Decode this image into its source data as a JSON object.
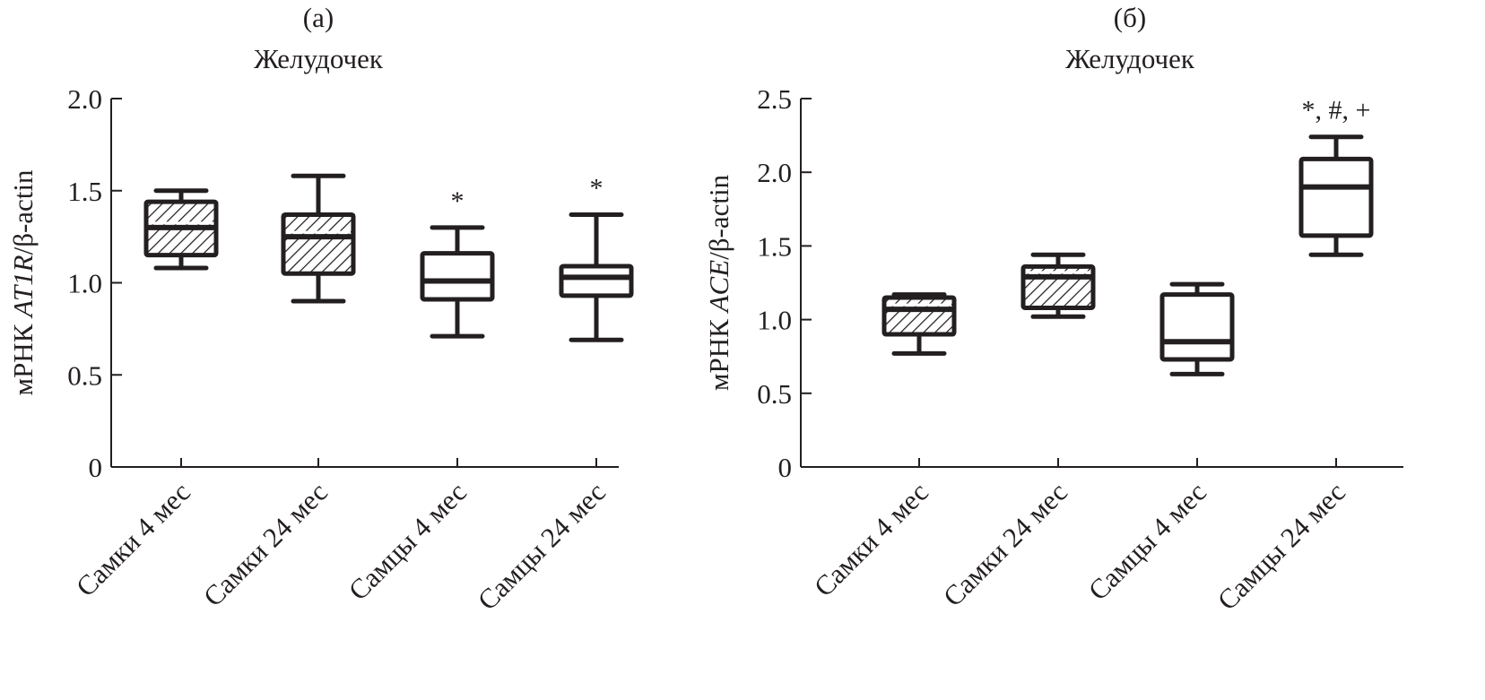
{
  "chart_data": [
    {
      "type": "box",
      "panel_label": "(а)",
      "title": "Желудочек",
      "ylabel": {
        "prefix": "мРНК ",
        "gene": "AT1R",
        "suffix": "/β-actin"
      },
      "ylim": [
        0,
        2.0
      ],
      "yticks": [
        0,
        0.5,
        1.0,
        1.5,
        2.0
      ],
      "ytick_labels": [
        "0",
        "0.5",
        "1.0",
        "1.5",
        "2.0"
      ],
      "categories": [
        "Самки 4 мес",
        "Самки 24 мес",
        "Самцы 4 мес",
        "Самцы 24 мес"
      ],
      "boxes": [
        {
          "min": 1.08,
          "q1": 1.15,
          "median": 1.3,
          "q3": 1.44,
          "max": 1.5,
          "hatched": true,
          "annotation": ""
        },
        {
          "min": 0.9,
          "q1": 1.05,
          "median": 1.25,
          "q3": 1.37,
          "max": 1.58,
          "hatched": true,
          "annotation": ""
        },
        {
          "min": 0.71,
          "q1": 0.91,
          "median": 1.01,
          "q3": 1.16,
          "max": 1.3,
          "hatched": false,
          "annotation": "*"
        },
        {
          "min": 0.69,
          "q1": 0.93,
          "median": 1.03,
          "q3": 1.09,
          "max": 1.37,
          "hatched": false,
          "annotation": "*"
        }
      ]
    },
    {
      "type": "box",
      "panel_label": "(б)",
      "title": "Желудочек",
      "ylabel": {
        "prefix": "мРНК ",
        "gene": "ACE",
        "suffix": "/β-actin"
      },
      "ylim": [
        0,
        2.5
      ],
      "yticks": [
        0,
        0.5,
        1.0,
        1.5,
        2.0,
        2.5
      ],
      "ytick_labels": [
        "0",
        "0.5",
        "1.0",
        "1.5",
        "2.0",
        "2.5"
      ],
      "categories": [
        "Самки 4 мес",
        "Самки 24 мес",
        "Самцы 4 мес",
        "Самцы 24 мес"
      ],
      "boxes": [
        {
          "min": 0.77,
          "q1": 0.9,
          "median": 1.07,
          "q3": 1.15,
          "max": 1.17,
          "hatched": true,
          "annotation": ""
        },
        {
          "min": 1.02,
          "q1": 1.08,
          "median": 1.29,
          "q3": 1.36,
          "max": 1.44,
          "hatched": true,
          "annotation": ""
        },
        {
          "min": 0.63,
          "q1": 0.73,
          "median": 0.85,
          "q3": 1.17,
          "max": 1.24,
          "hatched": false,
          "annotation": ""
        },
        {
          "min": 1.44,
          "q1": 1.57,
          "median": 1.9,
          "q3": 2.09,
          "max": 2.24,
          "hatched": false,
          "annotation": "*, #, +"
        }
      ]
    }
  ],
  "colors": {
    "ink": "#231f20",
    "background": "#ffffff"
  }
}
